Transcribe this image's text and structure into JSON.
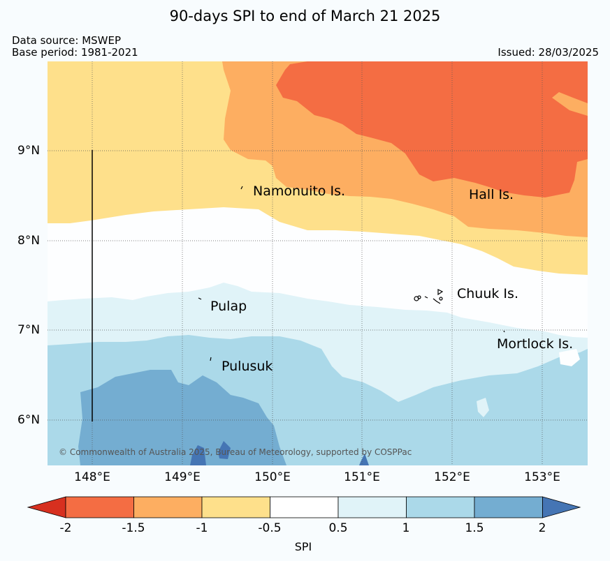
{
  "title": "90-days SPI to end of March 21 2025",
  "meta": {
    "data_source": "Data source: MSWEP",
    "base_period": "Base period: 1981-2021",
    "issued": "Issued: 28/03/2025"
  },
  "map": {
    "lon_range": [
      147.5,
      153.5
    ],
    "lat_range": [
      5.5,
      9.95
    ],
    "lat_ticks": [
      "9°N",
      "8°N",
      "7°N",
      "6°N"
    ],
    "lon_ticks": [
      "148°E",
      "149°E",
      "150°E",
      "151°E",
      "152°E",
      "153°E"
    ],
    "gridlines": true,
    "places": [
      "Namonuito Is.",
      "Hall Is.",
      "Chuuk Is.",
      "Pulap",
      "Mortlock Is.",
      "Pulusuk"
    ],
    "copyright": "© Commonwealth of Australia 2025, Bureau of Meteorology, supported by COSPPac"
  },
  "colorbar": {
    "ticks": [
      "-2",
      "-1.5",
      "-1",
      "-0.5",
      "0.5",
      "1",
      "1.5",
      "2"
    ],
    "colors": [
      "#d7301f",
      "#f46d43",
      "#fdae61",
      "#fee08b",
      "#ffffff",
      "#e0f3f8",
      "#abd9e9",
      "#74add1",
      "#4575b4"
    ],
    "label": "SPI"
  }
}
